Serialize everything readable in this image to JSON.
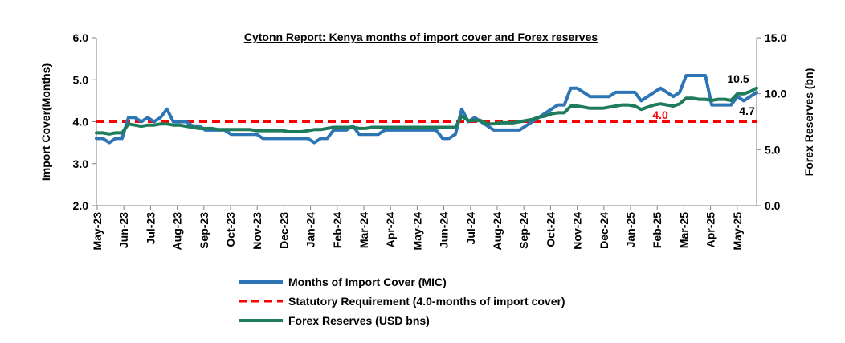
{
  "chart_data": {
    "type": "line",
    "title": "Cytonn Report: Kenya months of import cover and Forex reserves",
    "ylabel_left": "Import Cover(Months)",
    "ylabel_right": "Forex Reserves (bn)",
    "ylim_left": [
      2.0,
      6.0
    ],
    "ylim_right": [
      0.0,
      15.0
    ],
    "yticks_left": [
      "2.0",
      "3.0",
      "4.0",
      "5.0",
      "6.0"
    ],
    "yticks_right": [
      "0.0",
      "5.0",
      "10.0",
      "15.0"
    ],
    "x_tick_labels": [
      "May-23",
      "Jun-23",
      "Jul-23",
      "Aug-23",
      "Sep-23",
      "Oct-23",
      "Nov-23",
      "Dec-23",
      "Jan-24",
      "Feb-24",
      "Mar-24",
      "Apr-24",
      "May-24",
      "Jun-24",
      "Jul-24",
      "Aug-24",
      "Sep-24",
      "Oct-24",
      "Nov-24",
      "Dec-24",
      "Jan-25",
      "Feb-25",
      "Mar-25",
      "Apr-25",
      "May-25"
    ],
    "grid": false,
    "legend_position": "bottom",
    "series": [
      {
        "name": "Months of Import Cover (MIC)",
        "axis": "left",
        "color": "#2E75B6",
        "values": [
          3.6,
          3.6,
          3.5,
          3.6,
          3.6,
          4.1,
          4.1,
          4.0,
          4.1,
          4.0,
          4.1,
          4.3,
          4.0,
          4.0,
          4.0,
          3.9,
          3.9,
          3.8,
          3.8,
          3.8,
          3.8,
          3.7,
          3.7,
          3.7,
          3.7,
          3.7,
          3.6,
          3.6,
          3.6,
          3.6,
          3.6,
          3.6,
          3.6,
          3.6,
          3.5,
          3.6,
          3.6,
          3.8,
          3.8,
          3.8,
          3.9,
          3.7,
          3.7,
          3.7,
          3.7,
          3.8,
          3.8,
          3.8,
          3.8,
          3.8,
          3.8,
          3.8,
          3.8,
          3.8,
          3.6,
          3.6,
          3.7,
          4.3,
          4.0,
          4.1,
          4.0,
          3.9,
          3.8,
          3.8,
          3.8,
          3.8,
          3.8,
          3.9,
          4.0,
          4.1,
          4.2,
          4.3,
          4.4,
          4.4,
          4.8,
          4.8,
          4.7,
          4.6,
          4.6,
          4.6,
          4.6,
          4.7,
          4.7,
          4.7,
          4.7,
          4.5,
          4.6,
          4.7,
          4.8,
          4.7,
          4.6,
          4.7,
          5.1,
          5.1,
          5.1,
          5.1,
          4.4,
          4.4,
          4.4,
          4.4,
          4.6,
          4.5,
          4.6,
          4.7
        ]
      },
      {
        "name": "Statutory Requirement (4.0-months of import cover)",
        "axis": "left",
        "color": "#FF0000",
        "values": [
          4.0,
          4.0
        ]
      },
      {
        "name": "Forex Reserves (USD bns)",
        "axis": "right",
        "color": "#1E7B5C",
        "values": [
          6.5,
          6.5,
          6.4,
          6.5,
          6.5,
          7.3,
          7.2,
          7.1,
          7.2,
          7.2,
          7.3,
          7.3,
          7.2,
          7.2,
          7.1,
          7.0,
          6.9,
          6.9,
          6.9,
          6.8,
          6.8,
          6.8,
          6.8,
          6.8,
          6.8,
          6.7,
          6.7,
          6.7,
          6.7,
          6.7,
          6.6,
          6.6,
          6.6,
          6.7,
          6.8,
          6.8,
          6.9,
          7.0,
          7.0,
          7.0,
          7.0,
          6.9,
          6.9,
          7.0,
          7.0,
          7.0,
          7.0,
          7.0,
          7.0,
          7.0,
          7.0,
          7.0,
          7.0,
          7.0,
          7.0,
          7.0,
          7.0,
          8.0,
          7.6,
          7.6,
          7.6,
          7.3,
          7.3,
          7.4,
          7.4,
          7.4,
          7.5,
          7.6,
          7.7,
          7.9,
          8.0,
          8.2,
          8.3,
          8.3,
          8.9,
          8.9,
          8.8,
          8.7,
          8.7,
          8.7,
          8.8,
          8.9,
          9.0,
          9.0,
          8.9,
          8.6,
          8.8,
          9.0,
          9.1,
          9.0,
          8.9,
          9.1,
          9.6,
          9.6,
          9.5,
          9.5,
          9.4,
          9.5,
          9.5,
          9.4,
          10.0,
          10.0,
          10.2,
          10.5
        ]
      }
    ],
    "annotations": {
      "reserves_end": "10.5",
      "mic_end": "4.7",
      "statutory": "4.0"
    }
  }
}
